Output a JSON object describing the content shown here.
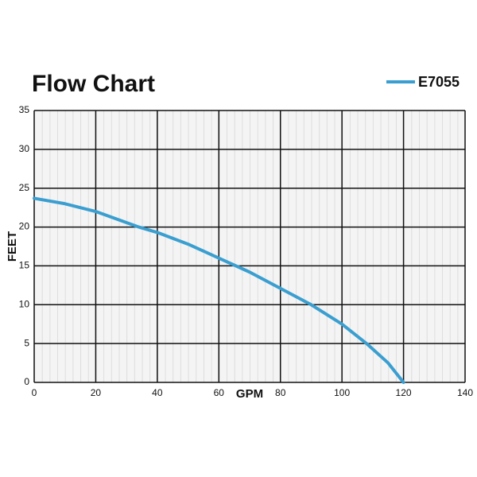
{
  "chart_data": {
    "type": "line",
    "title": "Flow Chart",
    "x_label": "GPM",
    "y_label": "FEET",
    "x": [
      0,
      10,
      20,
      34,
      40,
      50,
      60,
      70,
      80,
      90,
      100,
      108,
      115,
      120
    ],
    "series": [
      {
        "name": "E7055",
        "color": "#3a9fd0",
        "values": [
          23.7,
          23.0,
          22.0,
          20.0,
          19.3,
          17.8,
          16.0,
          14.2,
          12.1,
          10.0,
          7.5,
          5.0,
          2.5,
          0
        ]
      }
    ],
    "xlim": [
      0,
      140
    ],
    "xticks": [
      0,
      20,
      40,
      60,
      80,
      100,
      120,
      140
    ],
    "ylim": [
      0,
      35
    ],
    "yticks": [
      0,
      5,
      10,
      15,
      20,
      25,
      30,
      35
    ],
    "grid": true
  }
}
